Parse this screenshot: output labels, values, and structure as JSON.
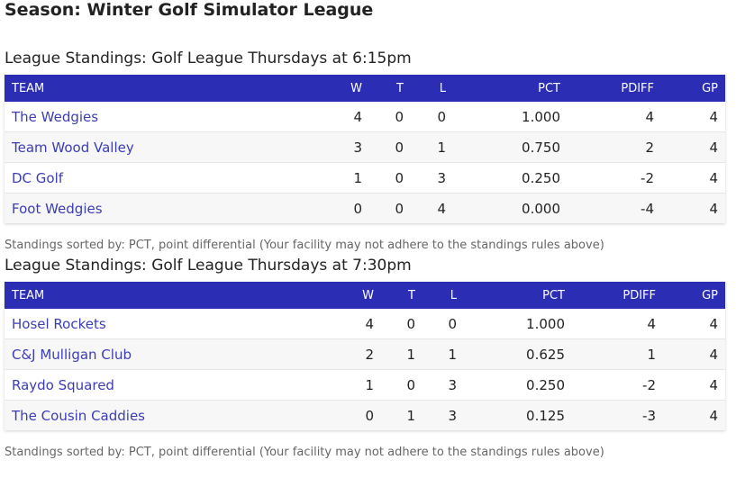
{
  "season": {
    "title": "Season: Winter Golf Simulator League"
  },
  "columns": {
    "team": "TEAM",
    "w": "W",
    "t": "T",
    "l": "L",
    "pct": "PCT",
    "pdiff": "PDIFF",
    "gp": "GP"
  },
  "leagues": [
    {
      "title": "League Standings: Golf League Thursdays at 6:15pm",
      "rows": [
        {
          "team": "The Wedgies",
          "w": "4",
          "t": "0",
          "l": "0",
          "pct": "1.000",
          "pdiff": "4",
          "gp": "4"
        },
        {
          "team": "Team Wood Valley",
          "w": "3",
          "t": "0",
          "l": "1",
          "pct": "0.750",
          "pdiff": "2",
          "gp": "4"
        },
        {
          "team": "DC Golf",
          "w": "1",
          "t": "0",
          "l": "3",
          "pct": "0.250",
          "pdiff": "-2",
          "gp": "4"
        },
        {
          "team": "Foot Wedgies",
          "w": "0",
          "t": "0",
          "l": "4",
          "pct": "0.000",
          "pdiff": "-4",
          "gp": "4"
        }
      ],
      "note": "Standings sorted by: PCT, point differential (Your facility may not adhere to the standings rules above)"
    },
    {
      "title": "League Standings: Golf League Thursdays at 7:30pm",
      "rows": [
        {
          "team": "Hosel Rockets",
          "w": "4",
          "t": "0",
          "l": "0",
          "pct": "1.000",
          "pdiff": "4",
          "gp": "4"
        },
        {
          "team": "C&J Mulligan Club",
          "w": "2",
          "t": "1",
          "l": "1",
          "pct": "0.625",
          "pdiff": "1",
          "gp": "4"
        },
        {
          "team": "Raydo Squared",
          "w": "1",
          "t": "0",
          "l": "3",
          "pct": "0.250",
          "pdiff": "-2",
          "gp": "4"
        },
        {
          "team": "The Cousin Caddies",
          "w": "0",
          "t": "1",
          "l": "3",
          "pct": "0.125",
          "pdiff": "-3",
          "gp": "4"
        }
      ],
      "note": "Standings sorted by: PCT, point differential (Your facility may not adhere to the standings rules above)"
    }
  ],
  "colors": {
    "header_bg": "#2b2db5",
    "link": "#3b3db8"
  }
}
